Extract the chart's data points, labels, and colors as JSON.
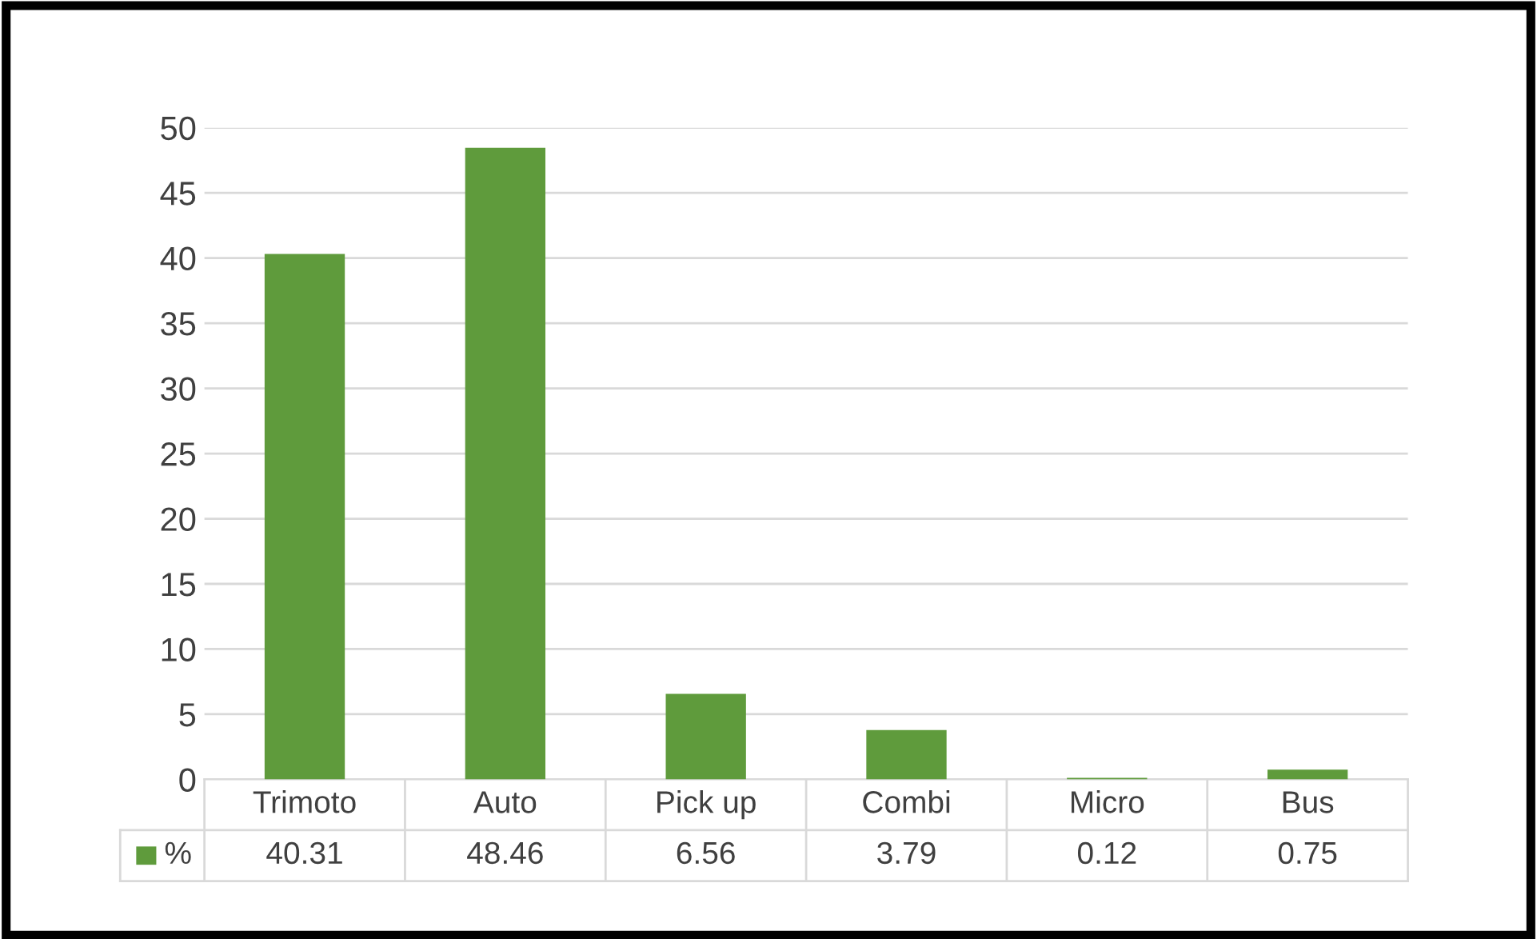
{
  "chart_data": {
    "type": "bar",
    "categories": [
      "Trimoto",
      "Auto",
      "Pick up",
      "Combi",
      "Micro",
      "Bus"
    ],
    "series": [
      {
        "name": "%",
        "color": "#5f9b3c",
        "values": [
          40.31,
          48.46,
          6.56,
          3.79,
          0.12,
          0.75
        ]
      }
    ],
    "ylim": [
      0,
      50
    ],
    "yticks": [
      0,
      5,
      10,
      15,
      20,
      25,
      30,
      35,
      40,
      45,
      50
    ],
    "grid": "y",
    "data_labels": true,
    "legend": "bottom"
  }
}
